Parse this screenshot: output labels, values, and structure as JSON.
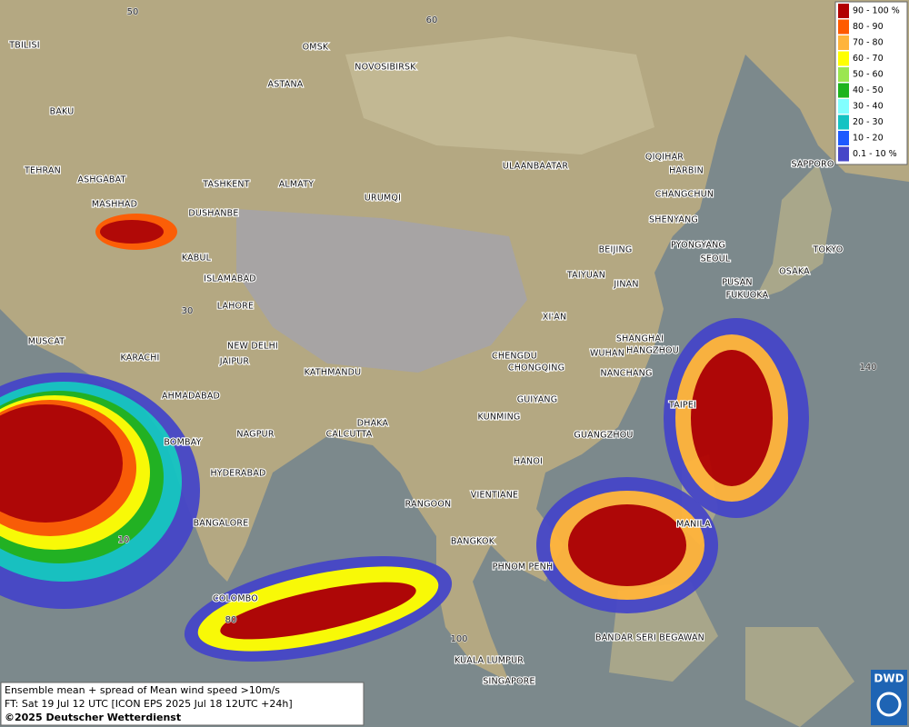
{
  "legend": {
    "items": [
      {
        "label": "90 - 100 %",
        "color": "#b20000"
      },
      {
        "label": "80 - 90",
        "color": "#ff5a00"
      },
      {
        "label": "70 - 80",
        "color": "#ffb43c"
      },
      {
        "label": "60 - 70",
        "color": "#ffff00"
      },
      {
        "label": "50 - 60",
        "color": "#9be650"
      },
      {
        "label": "40 - 50",
        "color": "#1eb41e"
      },
      {
        "label": "30 - 40",
        "color": "#82ffff"
      },
      {
        "label": "20 - 30",
        "color": "#14c3c3"
      },
      {
        "label": "10 - 20",
        "color": "#1e5aff"
      },
      {
        "label": "0.1 - 10 %",
        "color": "#4646c8"
      }
    ]
  },
  "cities": [
    "OMSK",
    "NOVOSIBIRSK",
    "ASTANA",
    "TBILISI",
    "BAKU",
    "TEHRAN",
    "ASHGABAT",
    "MASHHAD",
    "TASHKENT",
    "ALMATY",
    "DUSHANBE",
    "URUMQI",
    "ULAANBAATAR",
    "QIQIHAR",
    "HARBIN",
    "CHANGCHUN",
    "SHENYANG",
    "BEIJING",
    "PYONGYANG",
    "SEOUL",
    "TOKYO",
    "SAPPORO",
    "OSAKA",
    "PUSAN",
    "FUKUOKA",
    "KABUL",
    "ISLAMABAD",
    "LAHORE",
    "TAIYUAN",
    "JINAN",
    "XI'AN",
    "MUSCAT",
    "NEW DELHI",
    "KARACHI",
    "JAIPUR",
    "KATHMANDU",
    "CHENGDU",
    "CHONGQING",
    "WUHAN",
    "SHANGHAI",
    "HANGZHOU",
    "NANCHANG",
    "AHMADABAD",
    "GUIYANG",
    "TAIPEI",
    "KUNMING",
    "DHAKA",
    "CALCUTTA",
    "NAGPUR",
    "BOMBAY",
    "GUANGZHOU",
    "HANOI",
    "HYDERABAD",
    "RANGOON",
    "VIENTIANE",
    "MANILA",
    "BANGALORE",
    "BANGKOK",
    "PHNOM PENH",
    "COLOMBO",
    "BANDAR SERI BEGAWAN",
    "KUALA LUMPUR",
    "SINGAPORE"
  ],
  "grid_labels": [
    "50",
    "60",
    "30",
    "10",
    "140",
    "80",
    "100"
  ],
  "info": {
    "lines": [
      "Ensemble mean + spread of Mean wind speed >10m/s",
      "FT: Sat 19 Jul 12 UTC [ICON EPS 2025 Jul 18 12UTC +24h]",
      "©2025 Deutscher Wetterdienst"
    ]
  },
  "logo": "DWD"
}
